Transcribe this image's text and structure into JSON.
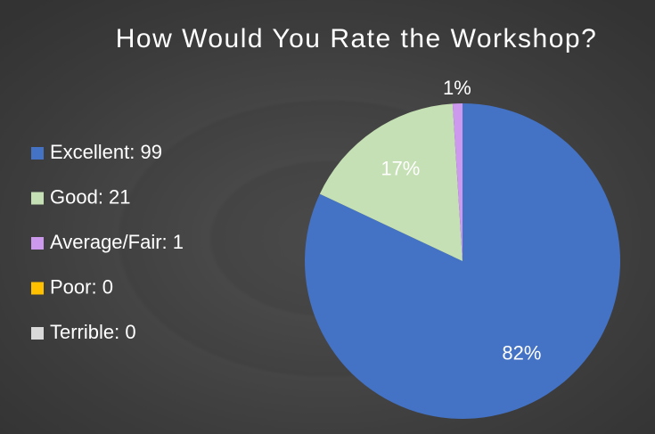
{
  "chart_data": {
    "type": "pie",
    "title": "How Would You Rate the Workshop?",
    "categories": [
      "Excellent: 99",
      "Good: 21",
      "Average/Fair: 1",
      "Poor: 0",
      "Terrible: 0"
    ],
    "values": [
      82,
      17,
      1,
      0,
      0
    ],
    "value_labels": [
      "82%",
      "17%",
      "1%",
      null,
      null
    ],
    "colors": [
      "#4472c4",
      "#c5e0b4",
      "#cc99ee",
      "#ffc000",
      "#d9d9d9"
    ],
    "legend": "left"
  }
}
